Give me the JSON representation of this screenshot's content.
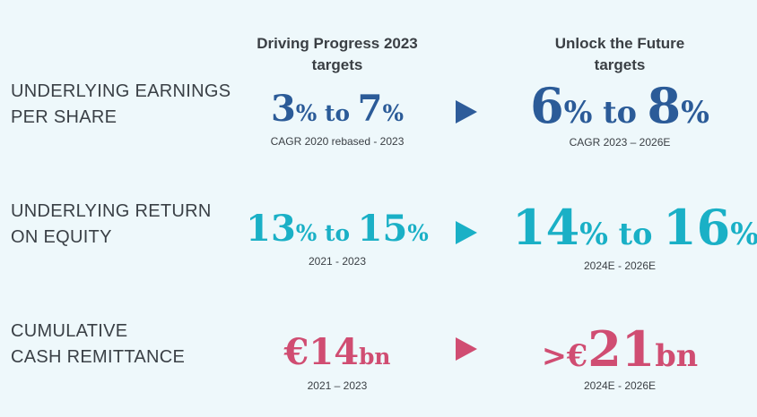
{
  "headers": {
    "left": [
      "Driving Progress 2023",
      "targets"
    ],
    "right": [
      "Unlock the Future",
      "targets"
    ]
  },
  "colors": {
    "eps": "#2b5b98",
    "roe": "#1ab0c6",
    "cash": "#d04d72"
  },
  "rows": [
    {
      "label": [
        "UNDERLYING EARNINGS",
        "PER SHARE"
      ],
      "left": {
        "n1": "3",
        "p1": "%",
        "to": " to ",
        "n2": "7",
        "p2": "%",
        "sub": "CAGR 2020 rebased - 2023"
      },
      "right": {
        "n1": "6",
        "p1": "%",
        "to": " to ",
        "n2": "8",
        "p2": "%",
        "sub": "CAGR 2023 – 2026E"
      }
    },
    {
      "label": [
        "UNDERLYING RETURN",
        "ON EQUITY"
      ],
      "left": {
        "n1": "13",
        "p1": "%",
        "to": " to ",
        "n2": "15",
        "p2": "%",
        "sub": "2021 - 2023"
      },
      "right": {
        "n1": "14",
        "p1": "%",
        "to": " to ",
        "n2": "16",
        "p2": "%",
        "sub": "2024E - 2026E"
      }
    },
    {
      "label": [
        "CUMULATIVE",
        "CASH REMITTANCE"
      ],
      "left": {
        "prefix": "€",
        "num": "14",
        "unit": "bn",
        "sub": "2021 – 2023"
      },
      "right": {
        "prefix": ">€",
        "num": "21",
        "unit": "bn",
        "sub": "2024E - 2026E"
      }
    }
  ]
}
